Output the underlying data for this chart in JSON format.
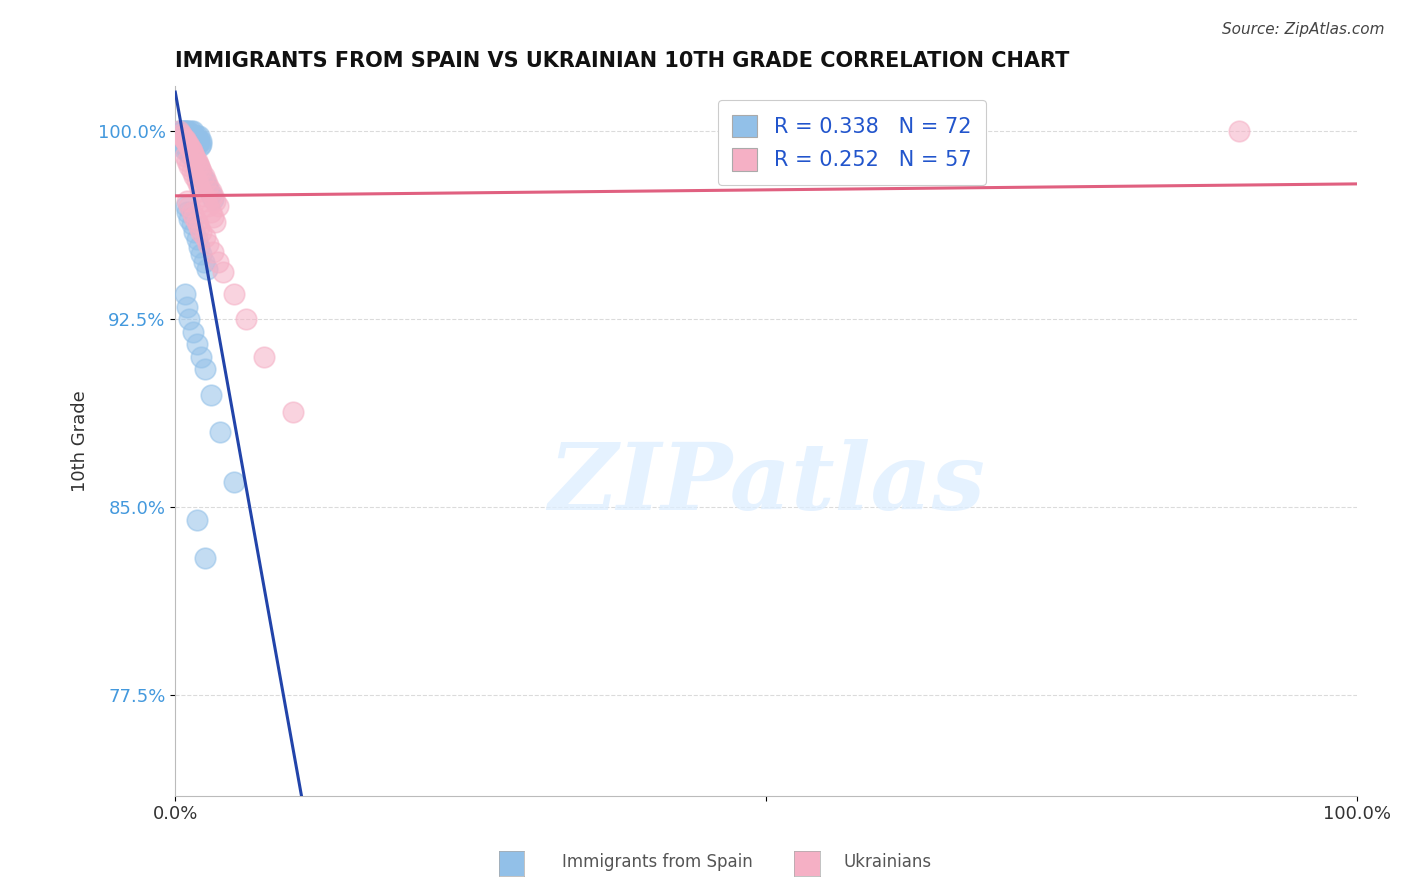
{
  "title": "IMMIGRANTS FROM SPAIN VS UKRAINIAN 10TH GRADE CORRELATION CHART",
  "source": "Source: ZipAtlas.com",
  "ylabel": "10th Grade",
  "legend_label1": "Immigrants from Spain",
  "legend_label2": "Ukrainians",
  "R1": 0.338,
  "N1": 72,
  "R2": 0.252,
  "N2": 57,
  "color1": "#92c0e8",
  "color2": "#f5b0c5",
  "trendline1_color": "#2244aa",
  "trendline2_color": "#e06080",
  "xlim": [
    0.0,
    1.0
  ],
  "ylim": [
    0.735,
    1.018
  ],
  "yticks": [
    0.775,
    0.85,
    0.925,
    1.0
  ],
  "ytick_labels": [
    "77.5%",
    "85.0%",
    "92.5%",
    "100.0%"
  ],
  "watermark": "ZIPatlas",
  "background_color": "#ffffff",
  "grid_color": "#cccccc",
  "blue_x": [
    0.003,
    0.005,
    0.006,
    0.007,
    0.008,
    0.008,
    0.009,
    0.009,
    0.01,
    0.01,
    0.01,
    0.011,
    0.011,
    0.012,
    0.012,
    0.013,
    0.013,
    0.014,
    0.015,
    0.015,
    0.016,
    0.017,
    0.018,
    0.018,
    0.019,
    0.02,
    0.02,
    0.021,
    0.022,
    0.022,
    0.005,
    0.007,
    0.009,
    0.01,
    0.011,
    0.012,
    0.013,
    0.014,
    0.015,
    0.016,
    0.017,
    0.018,
    0.019,
    0.02,
    0.022,
    0.024,
    0.026,
    0.028,
    0.03,
    0.032,
    0.009,
    0.01,
    0.012,
    0.014,
    0.016,
    0.018,
    0.02,
    0.022,
    0.024,
    0.027,
    0.008,
    0.01,
    0.012,
    0.015,
    0.018,
    0.022,
    0.025,
    0.03,
    0.038,
    0.05,
    0.018,
    0.025
  ],
  "blue_y": [
    1.0,
    1.0,
    1.0,
    1.0,
    1.0,
    0.998,
    1.0,
    0.999,
    1.0,
    0.999,
    0.997,
    1.0,
    0.998,
    0.999,
    0.997,
    1.0,
    0.998,
    0.999,
    1.0,
    0.997,
    0.998,
    0.996,
    0.997,
    0.998,
    0.995,
    0.996,
    0.998,
    0.994,
    0.996,
    0.995,
    0.995,
    0.993,
    0.994,
    0.992,
    0.993,
    0.991,
    0.992,
    0.99,
    0.991,
    0.989,
    0.988,
    0.987,
    0.986,
    0.985,
    0.983,
    0.981,
    0.979,
    0.977,
    0.975,
    0.973,
    0.97,
    0.968,
    0.965,
    0.963,
    0.96,
    0.957,
    0.954,
    0.951,
    0.948,
    0.945,
    0.935,
    0.93,
    0.925,
    0.92,
    0.915,
    0.91,
    0.905,
    0.895,
    0.88,
    0.86,
    0.845,
    0.83
  ],
  "pink_x": [
    0.003,
    0.005,
    0.006,
    0.007,
    0.008,
    0.009,
    0.01,
    0.011,
    0.012,
    0.013,
    0.014,
    0.015,
    0.016,
    0.017,
    0.018,
    0.019,
    0.02,
    0.021,
    0.022,
    0.024,
    0.026,
    0.028,
    0.03,
    0.032,
    0.034,
    0.036,
    0.008,
    0.01,
    0.012,
    0.014,
    0.016,
    0.018,
    0.02,
    0.022,
    0.024,
    0.026,
    0.028,
    0.03,
    0.032,
    0.034,
    0.01,
    0.012,
    0.014,
    0.016,
    0.018,
    0.02,
    0.022,
    0.025,
    0.028,
    0.032,
    0.036,
    0.04,
    0.05,
    0.06,
    0.075,
    0.1,
    0.9
  ],
  "pink_y": [
    1.0,
    0.999,
    0.998,
    0.997,
    0.997,
    0.996,
    0.995,
    0.995,
    0.994,
    0.993,
    0.992,
    0.991,
    0.99,
    0.989,
    0.988,
    0.987,
    0.986,
    0.985,
    0.984,
    0.982,
    0.98,
    0.978,
    0.976,
    0.974,
    0.972,
    0.97,
    0.99,
    0.988,
    0.986,
    0.984,
    0.982,
    0.98,
    0.978,
    0.976,
    0.974,
    0.972,
    0.97,
    0.968,
    0.966,
    0.964,
    0.972,
    0.97,
    0.968,
    0.966,
    0.964,
    0.962,
    0.96,
    0.958,
    0.955,
    0.952,
    0.948,
    0.944,
    0.935,
    0.925,
    0.91,
    0.888,
    1.0
  ]
}
